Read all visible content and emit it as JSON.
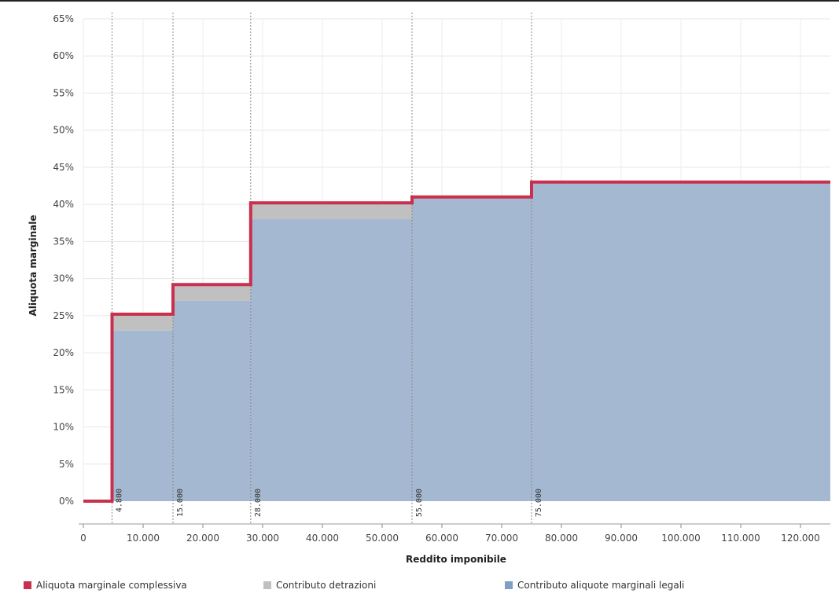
{
  "chart_data": {
    "type": "area",
    "title": "",
    "xlabel": "Reddito imponibile",
    "ylabel": "Aliquota marginale",
    "xlim": [
      0,
      125000
    ],
    "ylim": [
      0,
      65
    ],
    "x_ticks": [
      0,
      10000,
      20000,
      30000,
      40000,
      50000,
      60000,
      70000,
      80000,
      90000,
      100000,
      110000,
      120000
    ],
    "x_tick_labels": [
      "0",
      "10.000",
      "20.000",
      "30.000",
      "40.000",
      "50.000",
      "60.000",
      "70.000",
      "80.000",
      "90.000",
      "100.000",
      "110.000",
      "120.000"
    ],
    "y_ticks": [
      0,
      5,
      10,
      15,
      20,
      25,
      30,
      35,
      40,
      45,
      50,
      55,
      60,
      65
    ],
    "y_tick_labels": [
      "0%",
      "5%",
      "10%",
      "15%",
      "20%",
      "25%",
      "30%",
      "35%",
      "40%",
      "45%",
      "50%",
      "55%",
      "60%",
      "65%"
    ],
    "grid": true,
    "legend_position": "bottom",
    "thresholds": [
      {
        "x": 4800,
        "label": "4.800"
      },
      {
        "x": 15000,
        "label": "15.000"
      },
      {
        "x": 28000,
        "label": "28.000"
      },
      {
        "x": 55000,
        "label": "55.000"
      },
      {
        "x": 75000,
        "label": "75.000"
      }
    ],
    "series": [
      {
        "name": "Aliquota marginale complessiva",
        "color": "#c8304e",
        "x": [
          0,
          4800,
          4800,
          15000,
          15000,
          28000,
          28000,
          55000,
          55000,
          75000,
          75000,
          125000
        ],
        "values": [
          0,
          0,
          25.2,
          25.2,
          29.2,
          29.2,
          40.2,
          40.2,
          41,
          41,
          43,
          43
        ]
      },
      {
        "name": "Contributo detrazioni",
        "color": "#c0c0c0",
        "steps": [
          {
            "x0": 4800,
            "x1": 15000,
            "y0": 23,
            "y1": 25.2
          },
          {
            "x0": 15000,
            "x1": 28000,
            "y0": 27,
            "y1": 29.2
          },
          {
            "x0": 28000,
            "x1": 55000,
            "y0": 38,
            "y1": 40.2
          }
        ]
      },
      {
        "name": "Contributo aliquote marginali legali",
        "color": "#a4b9d1",
        "steps": [
          {
            "x0": 4800,
            "x1": 15000,
            "y": 23
          },
          {
            "x0": 15000,
            "x1": 28000,
            "y": 27
          },
          {
            "x0": 28000,
            "x1": 55000,
            "y": 38
          },
          {
            "x0": 55000,
            "x1": 75000,
            "y": 41
          },
          {
            "x0": 75000,
            "x1": 125000,
            "y": 43
          }
        ]
      }
    ]
  },
  "legend": {
    "items": [
      {
        "label": "Aliquota marginale complessiva",
        "color": "#c8304e"
      },
      {
        "label": "Contributo detrazioni",
        "color": "#c0c0c0"
      },
      {
        "label": "Contributo aliquote marginali legali",
        "color": "#7f9fc6"
      }
    ]
  }
}
